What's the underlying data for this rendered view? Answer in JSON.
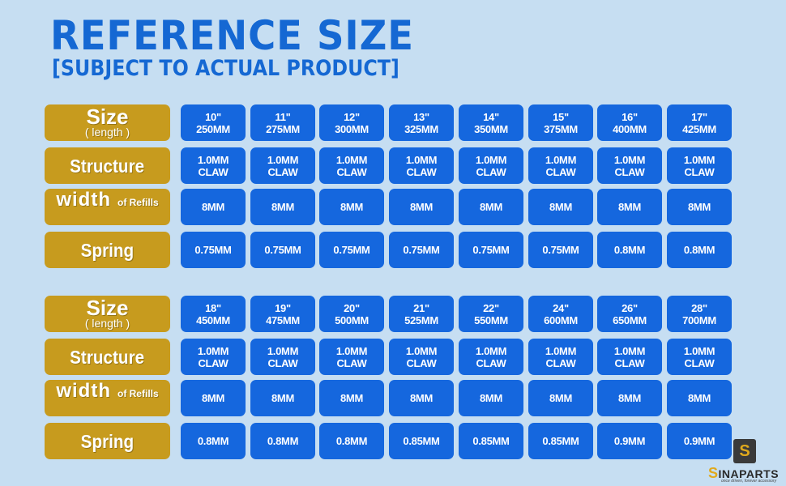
{
  "header": {
    "title": "REFERENCE SIZE",
    "subtitle": "[SUBJECT TO ACTUAL PRODUCT]"
  },
  "labels": {
    "size": "Size",
    "size_sub": "( length )",
    "structure": "Structure",
    "width": "width",
    "width_sub": "of Refills",
    "spring": "Spring"
  },
  "table1": {
    "size_inch": [
      "10\"",
      "11\"",
      "12\"",
      "13\"",
      "14\"",
      "15\"",
      "16\"",
      "17\""
    ],
    "size_mm": [
      "250MM",
      "275MM",
      "300MM",
      "325MM",
      "350MM",
      "375MM",
      "400MM",
      "425MM"
    ],
    "structure_top": [
      "1.0MM",
      "1.0MM",
      "1.0MM",
      "1.0MM",
      "1.0MM",
      "1.0MM",
      "1.0MM",
      "1.0MM"
    ],
    "structure_bottom": [
      "CLAW",
      "CLAW",
      "CLAW",
      "CLAW",
      "CLAW",
      "CLAW",
      "CLAW",
      "CLAW"
    ],
    "width": [
      "8MM",
      "8MM",
      "8MM",
      "8MM",
      "8MM",
      "8MM",
      "8MM",
      "8MM"
    ],
    "spring": [
      "0.75MM",
      "0.75MM",
      "0.75MM",
      "0.75MM",
      "0.75MM",
      "0.75MM",
      "0.8MM",
      "0.8MM"
    ]
  },
  "table2": {
    "size_inch": [
      "18\"",
      "19\"",
      "20\"",
      "21\"",
      "22\"",
      "24\"",
      "26\"",
      "28\""
    ],
    "size_mm": [
      "450MM",
      "475MM",
      "500MM",
      "525MM",
      "550MM",
      "600MM",
      "650MM",
      "700MM"
    ],
    "structure_top": [
      "1.0MM",
      "1.0MM",
      "1.0MM",
      "1.0MM",
      "1.0MM",
      "1.0MM",
      "1.0MM",
      "1.0MM"
    ],
    "structure_bottom": [
      "CLAW",
      "CLAW",
      "CLAW",
      "CLAW",
      "CLAW",
      "CLAW",
      "CLAW",
      "CLAW"
    ],
    "width": [
      "8MM",
      "8MM",
      "8MM",
      "8MM",
      "8MM",
      "8MM",
      "8MM",
      "8MM"
    ],
    "spring": [
      "0.8MM",
      "0.8MM",
      "0.8MM",
      "0.85MM",
      "0.85MM",
      "0.85MM",
      "0.9MM",
      "0.9MM"
    ]
  },
  "logo": {
    "badge": "S",
    "first_letter": "S",
    "rest": "INAPARTS",
    "tagline": "once driven, forever accessory"
  },
  "colors": {
    "background": "#c6def2",
    "title": "#1568d3",
    "label_gold": "#c79b1e",
    "cell_blue": "#1567de"
  }
}
